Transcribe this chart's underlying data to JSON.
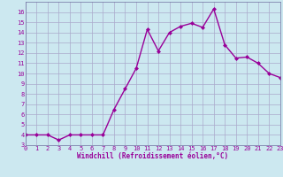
{
  "x": [
    0,
    1,
    2,
    3,
    4,
    5,
    6,
    7,
    8,
    9,
    10,
    11,
    12,
    13,
    14,
    15,
    16,
    17,
    18,
    19,
    20,
    21,
    22,
    23
  ],
  "y": [
    4.0,
    4.0,
    4.0,
    3.5,
    4.0,
    4.0,
    4.0,
    4.0,
    6.5,
    8.5,
    10.5,
    14.3,
    12.2,
    14.0,
    14.6,
    14.9,
    14.5,
    16.3,
    12.8,
    11.5,
    11.6,
    11.0,
    10.0,
    9.6
  ],
  "line_color": "#990099",
  "marker": "D",
  "marker_size": 2,
  "bg_color": "#cce8f0",
  "grid_color": "#aaaacc",
  "xlabel": "Windchill (Refroidissement éolien,°C)",
  "xlabel_color": "#990099",
  "tick_color": "#990099",
  "ylim": [
    3,
    17
  ],
  "xlim": [
    0,
    23
  ],
  "yticks": [
    3,
    4,
    5,
    6,
    7,
    8,
    9,
    10,
    11,
    12,
    13,
    14,
    15,
    16
  ],
  "xticks": [
    0,
    1,
    2,
    3,
    4,
    5,
    6,
    7,
    8,
    9,
    10,
    11,
    12,
    13,
    14,
    15,
    16,
    17,
    18,
    19,
    20,
    21,
    22,
    23
  ],
  "line_width": 1.0
}
